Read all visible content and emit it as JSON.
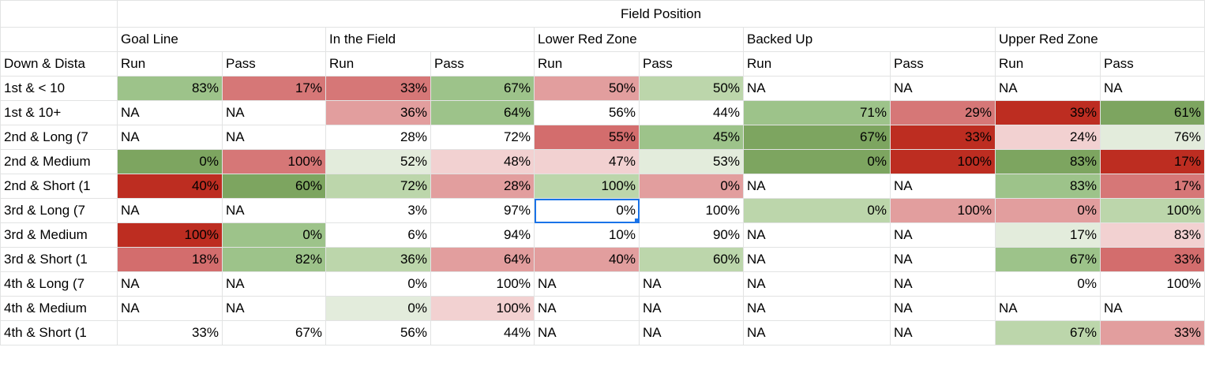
{
  "title": "Field Position",
  "row_header_label": "Down & Dista",
  "zones": [
    "Goal Line",
    "In the Field",
    "Lower Red Zone",
    "Backed Up",
    "Upper Red Zone"
  ],
  "subheaders": [
    "Run",
    "Pass"
  ],
  "rows": [
    {
      "label": "1st & < 10",
      "cells": [
        [
          "83%",
          "#9dc38a"
        ],
        [
          "17%",
          "#d67777"
        ],
        [
          "33%",
          "#d67777"
        ],
        [
          "67%",
          "#9dc38a"
        ],
        [
          "50%",
          "#e29e9e"
        ],
        [
          "50%",
          "#bcd6ab"
        ],
        [
          "NA",
          ""
        ],
        [
          "NA",
          ""
        ],
        [
          "NA",
          ""
        ],
        [
          "NA",
          ""
        ]
      ]
    },
    {
      "label": "1st & 10+",
      "cells": [
        [
          "NA",
          ""
        ],
        [
          "NA",
          ""
        ],
        [
          "36%",
          "#e29e9e"
        ],
        [
          "64%",
          "#9dc38a"
        ],
        [
          "56%",
          ""
        ],
        [
          "44%",
          ""
        ],
        [
          "71%",
          "#9dc38a"
        ],
        [
          "29%",
          "#d67777"
        ],
        [
          "39%",
          "#bd2d21"
        ],
        [
          "61%",
          "#7da560"
        ]
      ]
    },
    {
      "label": "2nd & Long (7",
      "cells": [
        [
          "NA",
          ""
        ],
        [
          "NA",
          ""
        ],
        [
          "28%",
          ""
        ],
        [
          "72%",
          ""
        ],
        [
          "55%",
          "#d36d6d"
        ],
        [
          "45%",
          "#9dc38a"
        ],
        [
          "67%",
          "#7da560"
        ],
        [
          "33%",
          "#bd2d21"
        ],
        [
          "24%",
          "#f2d1d1"
        ],
        [
          "76%",
          "#e3ecdc"
        ]
      ]
    },
    {
      "label": "2nd & Medium",
      "cells": [
        [
          "0%",
          "#7da560"
        ],
        [
          "100%",
          "#d67777"
        ],
        [
          "52%",
          "#e3ecdc"
        ],
        [
          "48%",
          "#f2d1d1"
        ],
        [
          "47%",
          "#f2d1d1"
        ],
        [
          "53%",
          "#e3ecdc"
        ],
        [
          "0%",
          "#7da560"
        ],
        [
          "100%",
          "#bd2d21"
        ],
        [
          "83%",
          "#7da560"
        ],
        [
          "17%",
          "#bd2d21"
        ]
      ]
    },
    {
      "label": "2nd & Short (1",
      "cells": [
        [
          "40%",
          "#bd2d21"
        ],
        [
          "60%",
          "#7da560"
        ],
        [
          "72%",
          "#bcd6ab"
        ],
        [
          "28%",
          "#e29e9e"
        ],
        [
          "100%",
          "#bcd6ab"
        ],
        [
          "0%",
          "#e29e9e"
        ],
        [
          "NA",
          ""
        ],
        [
          "NA",
          ""
        ],
        [
          "83%",
          "#9dc38a"
        ],
        [
          "17%",
          "#d67777"
        ]
      ]
    },
    {
      "label": "3rd & Long (7",
      "cells": [
        [
          "NA",
          ""
        ],
        [
          "NA",
          ""
        ],
        [
          "3%",
          ""
        ],
        [
          "97%",
          ""
        ],
        [
          "0%",
          ""
        ],
        [
          "100%",
          ""
        ],
        [
          "0%",
          "#bcd6ab"
        ],
        [
          "100%",
          "#e29e9e"
        ],
        [
          "0%",
          "#e29e9e"
        ],
        [
          "100%",
          "#bcd6ab"
        ]
      ]
    },
    {
      "label": "3rd & Medium",
      "cells": [
        [
          "100%",
          "#bd2d21"
        ],
        [
          "0%",
          "#9dc38a"
        ],
        [
          "6%",
          ""
        ],
        [
          "94%",
          ""
        ],
        [
          "10%",
          ""
        ],
        [
          "90%",
          ""
        ],
        [
          "NA",
          ""
        ],
        [
          "NA",
          ""
        ],
        [
          "17%",
          "#e3ecdc"
        ],
        [
          "83%",
          "#f2d1d1"
        ]
      ]
    },
    {
      "label": "3rd & Short (1",
      "cells": [
        [
          "18%",
          "#d36d6d"
        ],
        [
          "82%",
          "#9dc38a"
        ],
        [
          "36%",
          "#bcd6ab"
        ],
        [
          "64%",
          "#e29e9e"
        ],
        [
          "40%",
          "#e29e9e"
        ],
        [
          "60%",
          "#bcd6ab"
        ],
        [
          "NA",
          ""
        ],
        [
          "NA",
          ""
        ],
        [
          "67%",
          "#9dc38a"
        ],
        [
          "33%",
          "#d36d6d"
        ]
      ]
    },
    {
      "label": "4th & Long (7",
      "cells": [
        [
          "NA",
          ""
        ],
        [
          "NA",
          ""
        ],
        [
          "0%",
          ""
        ],
        [
          "100%",
          ""
        ],
        [
          "NA",
          ""
        ],
        [
          "NA",
          ""
        ],
        [
          "NA",
          ""
        ],
        [
          "NA",
          ""
        ],
        [
          "0%",
          ""
        ],
        [
          "100%",
          ""
        ]
      ]
    },
    {
      "label": "4th & Medium",
      "cells": [
        [
          "NA",
          ""
        ],
        [
          "NA",
          ""
        ],
        [
          "0%",
          "#e3ecdc"
        ],
        [
          "100%",
          "#f2d1d1"
        ],
        [
          "NA",
          ""
        ],
        [
          "NA",
          ""
        ],
        [
          "NA",
          ""
        ],
        [
          "NA",
          ""
        ],
        [
          "NA",
          ""
        ],
        [
          "NA",
          ""
        ]
      ]
    },
    {
      "label": "4th & Short (1",
      "cells": [
        [
          "33%",
          ""
        ],
        [
          "67%",
          ""
        ],
        [
          "56%",
          ""
        ],
        [
          "44%",
          ""
        ],
        [
          "NA",
          ""
        ],
        [
          "NA",
          ""
        ],
        [
          "NA",
          ""
        ],
        [
          "NA",
          ""
        ],
        [
          "67%",
          "#bcd6ab"
        ],
        [
          "33%",
          "#e29e9e"
        ]
      ]
    }
  ],
  "selected_cell": {
    "row": 5,
    "col": 4
  }
}
